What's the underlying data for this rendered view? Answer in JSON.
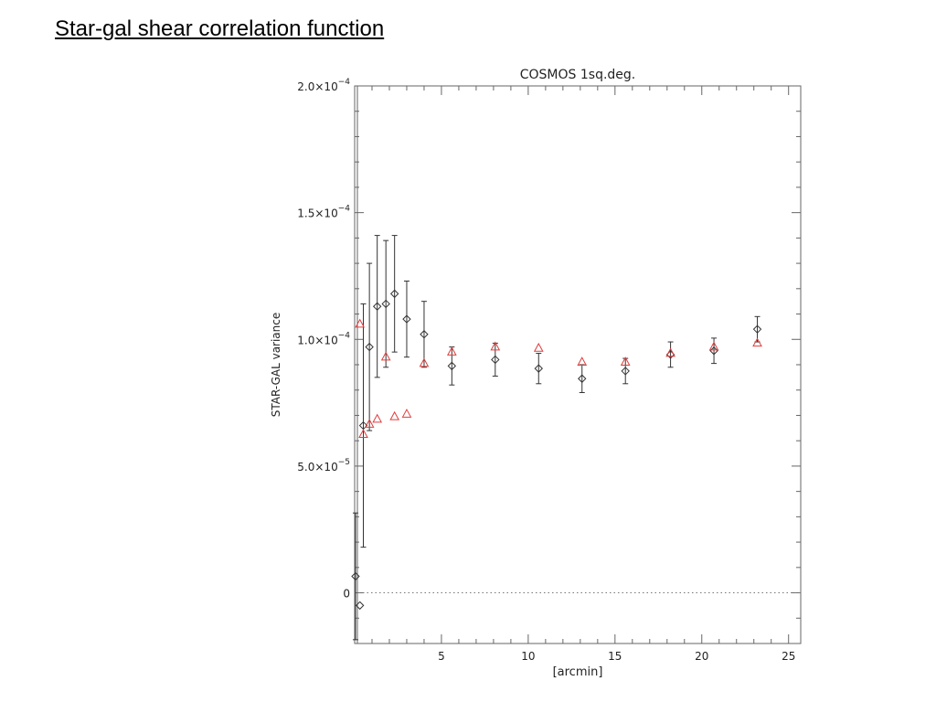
{
  "slide": {
    "title": "Star-gal shear correlation function"
  },
  "chart_data": {
    "type": "scatter",
    "title": "COSMOS 1sq.deg.",
    "xlabel": "[arcmin]",
    "ylabel": "STAR-GAL variance",
    "xlim": [
      0,
      25.7
    ],
    "ylim": [
      -2e-05,
      0.0002
    ],
    "x_ticks": [
      {
        "value": 5,
        "label": "5"
      },
      {
        "value": 10,
        "label": "10"
      },
      {
        "value": 15,
        "label": "15"
      },
      {
        "value": 20,
        "label": "20"
      },
      {
        "value": 25,
        "label": "25"
      }
    ],
    "y_ticks": [
      {
        "value": 0,
        "mantissa": "0",
        "exp": ""
      },
      {
        "value": 5e-05,
        "mantissa": "5.0×10",
        "exp": "−5"
      },
      {
        "value": 0.0001,
        "mantissa": "1.0×10",
        "exp": "−4"
      },
      {
        "value": 0.00015,
        "mantissa": "1.5×10",
        "exp": "−4"
      },
      {
        "value": 0.0002,
        "mantissa": "2.0×10",
        "exp": "−4"
      }
    ],
    "zero_line": true,
    "grid": false,
    "series": [
      {
        "marker": "diamond",
        "color": "#333333",
        "points": [
          {
            "x": 0.05,
            "y": 6.5e-06,
            "err": 2.5e-05
          },
          {
            "x": 0.3,
            "y": -5e-06,
            "err": 0
          },
          {
            "x": 0.5,
            "y": 6.6e-05,
            "err": 4.8e-05
          },
          {
            "x": 0.85,
            "y": 9.7e-05,
            "err": 3.3e-05
          },
          {
            "x": 1.3,
            "y": 0.000113,
            "err": 2.8e-05
          },
          {
            "x": 1.8,
            "y": 0.000114,
            "err": 2.5e-05
          },
          {
            "x": 2.3,
            "y": 0.000118,
            "err": 2.3e-05
          },
          {
            "x": 3.0,
            "y": 0.000108,
            "err": 1.5e-05
          },
          {
            "x": 4.0,
            "y": 0.000102,
            "err": 1.3e-05
          },
          {
            "x": 5.6,
            "y": 8.95e-05,
            "err": 7.5e-06
          },
          {
            "x": 8.1,
            "y": 9.2e-05,
            "err": 6.5e-06
          },
          {
            "x": 10.6,
            "y": 8.85e-05,
            "err": 6e-06
          },
          {
            "x": 13.1,
            "y": 8.45e-05,
            "err": 5.5e-06
          },
          {
            "x": 15.6,
            "y": 8.75e-05,
            "err": 5e-06
          },
          {
            "x": 18.2,
            "y": 9.4e-05,
            "err": 5e-06
          },
          {
            "x": 20.7,
            "y": 9.55e-05,
            "err": 5e-06
          },
          {
            "x": 23.2,
            "y": 0.000104,
            "err": 5e-06
          }
        ]
      },
      {
        "marker": "triangle",
        "color": "#e03c3c",
        "points": [
          {
            "x": 0.3,
            "y": 0.000106
          },
          {
            "x": 0.5,
            "y": 6.25e-05
          },
          {
            "x": 0.85,
            "y": 6.65e-05
          },
          {
            "x": 1.3,
            "y": 6.85e-05
          },
          {
            "x": 1.8,
            "y": 9.3e-05
          },
          {
            "x": 2.3,
            "y": 6.95e-05
          },
          {
            "x": 3.0,
            "y": 7.05e-05
          },
          {
            "x": 4.0,
            "y": 9.05e-05
          },
          {
            "x": 5.6,
            "y": 9.5e-05
          },
          {
            "x": 8.1,
            "y": 9.7e-05
          },
          {
            "x": 10.6,
            "y": 9.65e-05
          },
          {
            "x": 13.1,
            "y": 9.1e-05
          },
          {
            "x": 15.6,
            "y": 9.1e-05
          },
          {
            "x": 18.2,
            "y": 9.45e-05
          },
          {
            "x": 20.7,
            "y": 9.7e-05
          },
          {
            "x": 23.2,
            "y": 9.85e-05
          }
        ]
      }
    ]
  }
}
